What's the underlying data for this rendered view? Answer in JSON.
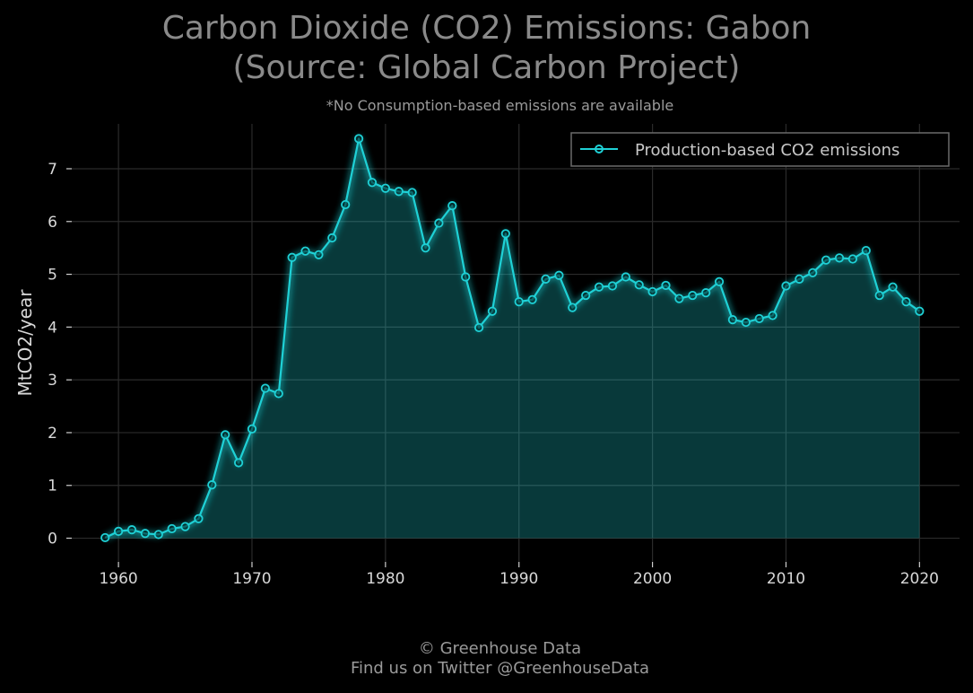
{
  "chart_data": {
    "type": "area",
    "title_line1": "Carbon Dioxide (CO2) Emissions: Gabon",
    "title_line2": "(Source: Global Carbon Project)",
    "subtitle": "*No Consumption-based emissions are available",
    "ylabel": "MtCO2/year",
    "xlabel": "",
    "xlim": [
      1956.5,
      2023
    ],
    "ylim": [
      -0.45,
      7.85
    ],
    "x_ticks": [
      1960,
      1970,
      1980,
      1990,
      2000,
      2010,
      2020
    ],
    "y_ticks": [
      0,
      1,
      2,
      3,
      4,
      5,
      6,
      7
    ],
    "grid": true,
    "legend_position": "top-right",
    "series": [
      {
        "name": "Production-based CO2 emissions",
        "color": "#1fd1d6",
        "x": [
          1959,
          1960,
          1961,
          1962,
          1963,
          1964,
          1965,
          1966,
          1967,
          1968,
          1969,
          1970,
          1971,
          1972,
          1973,
          1974,
          1975,
          1976,
          1977,
          1978,
          1979,
          1980,
          1981,
          1982,
          1983,
          1984,
          1985,
          1986,
          1987,
          1988,
          1989,
          1990,
          1991,
          1992,
          1993,
          1994,
          1995,
          1996,
          1997,
          1998,
          1999,
          2000,
          2001,
          2002,
          2003,
          2004,
          2005,
          2006,
          2007,
          2008,
          2009,
          2010,
          2011,
          2012,
          2013,
          2014,
          2015,
          2016,
          2017,
          2018,
          2019,
          2020
        ],
        "values": [
          0.01,
          0.13,
          0.16,
          0.09,
          0.07,
          0.18,
          0.22,
          0.37,
          1.01,
          1.96,
          1.43,
          2.07,
          2.84,
          2.74,
          5.32,
          5.44,
          5.37,
          5.69,
          6.32,
          7.57,
          6.74,
          6.63,
          6.57,
          6.55,
          5.5,
          5.97,
          6.3,
          4.95,
          3.99,
          4.3,
          5.77,
          4.48,
          4.52,
          4.91,
          4.98,
          4.37,
          4.6,
          4.76,
          4.78,
          4.95,
          4.8,
          4.67,
          4.79,
          4.54,
          4.6,
          4.65,
          4.86,
          4.14,
          4.09,
          4.16,
          4.22,
          4.78,
          4.91,
          5.03,
          5.27,
          5.31,
          5.29,
          5.45,
          4.6,
          4.76,
          4.48,
          4.3
        ]
      }
    ]
  },
  "footer": {
    "line1": "© Greenhouse Data",
    "line2": "Find us on Twitter @GreenhouseData"
  }
}
